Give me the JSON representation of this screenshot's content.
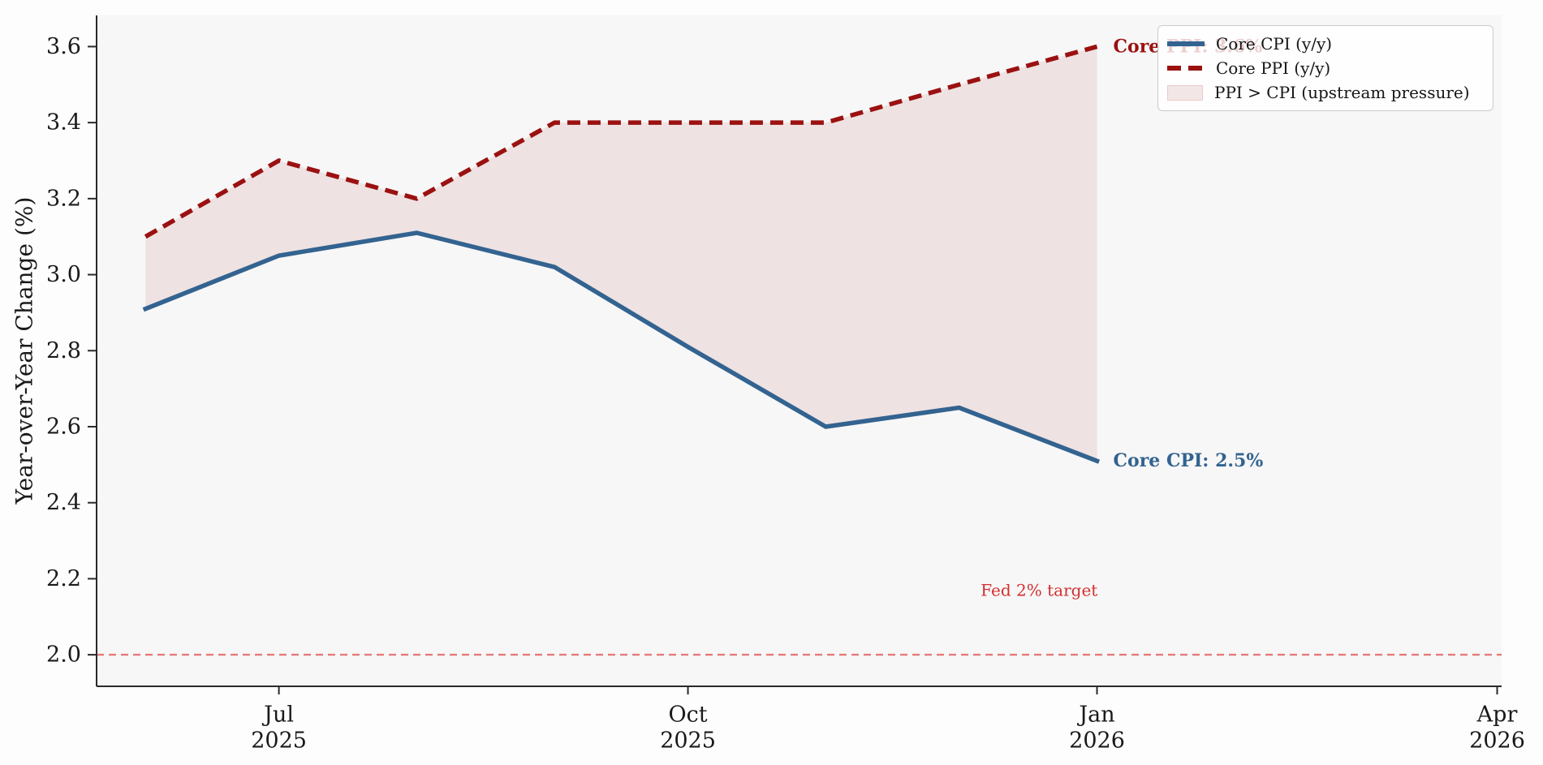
{
  "colors": {
    "figure_background": "#fdfdfd",
    "axes_background": "#f7f7f7",
    "spine": "#2a2a2a",
    "tick_label": "#1a1a1a",
    "cpi_blue": "#336390",
    "ppi_darkred": "#9b1111",
    "fill_pink": "rgba(155,17,17,0.085)",
    "fed_line_salmon": "#e57a7a",
    "fed_text_red": "#d32f2f"
  },
  "chart_data": {
    "type": "line",
    "title": "",
    "xlabel": "",
    "ylabel": "Year-over-Year Change (%)",
    "grid": false,
    "legend_position": "upper right",
    "x": [
      "2025-06-01",
      "2025-07-01",
      "2025-08-01",
      "2025-09-01",
      "2025-10-01",
      "2025-11-01",
      "2025-12-01",
      "2026-01-01"
    ],
    "series": [
      {
        "name": "Core CPI (y/y)",
        "color": "#336390",
        "style": "solid",
        "values": [
          2.91,
          3.05,
          3.11,
          3.02,
          2.81,
          2.6,
          2.65,
          2.51
        ]
      },
      {
        "name": "Core PPI (y/y)",
        "color": "#9b1111",
        "style": "dashed",
        "values": [
          3.1,
          3.3,
          3.2,
          3.4,
          3.4,
          3.4,
          3.5,
          3.6
        ]
      }
    ],
    "fill_between": {
      "label": "PPI > CPI (upstream pressure)",
      "fill_color": "rgba(155,17,17,0.085)"
    },
    "ylim": [
      1.917,
      3.682
    ],
    "yticks": [
      2.0,
      2.2,
      2.4,
      2.6,
      2.8,
      3.0,
      3.2,
      3.4,
      3.6
    ],
    "xlim": [
      "2025-05-21",
      "2026-04-02"
    ],
    "xticks": [
      {
        "date": "2025-07-01",
        "month": "Jul",
        "year": "2025"
      },
      {
        "date": "2025-10-01",
        "month": "Oct",
        "year": "2025"
      },
      {
        "date": "2026-01-01",
        "month": "Jan",
        "year": "2026"
      },
      {
        "date": "2026-04-01",
        "month": "Apr",
        "year": "2026"
      }
    ],
    "reference_line": {
      "value": 2.0,
      "line_color": "#e57a7a",
      "label": "Fed 2% target",
      "label_color": "#d32f2f",
      "label_anchor": {
        "date": "2025-12-19",
        "value": 2.17
      }
    },
    "annotations": [
      {
        "text": "Core PPI: 3.6%",
        "date": "2026-01-01",
        "value": 3.6,
        "color": "#9b1111"
      },
      {
        "text": "Core CPI: 2.5%",
        "date": "2026-01-01",
        "value": 2.51,
        "color": "#336390"
      }
    ],
    "legend": {
      "entries": [
        {
          "label": "Core CPI (y/y)"
        },
        {
          "label": "Core PPI (y/y)"
        },
        {
          "label": "PPI > CPI (upstream pressure)"
        }
      ]
    }
  }
}
